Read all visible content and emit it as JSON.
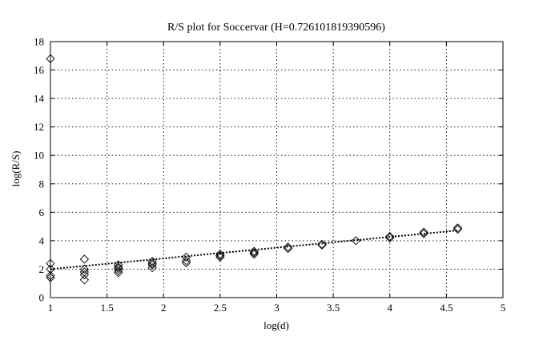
{
  "chart_data": {
    "type": "scatter",
    "title": "R/S plot for Soccervar (H=0.726101819390596)",
    "xlabel": "log(d)",
    "ylabel": "log(R/S)",
    "xlim": [
      1,
      5
    ],
    "ylim": [
      0,
      18
    ],
    "xticks": [
      "1",
      "1.5",
      "2",
      "2.5",
      "3",
      "3.5",
      "4",
      "4.5",
      "5"
    ],
    "yticks": [
      "0",
      "2",
      "4",
      "6",
      "8",
      "10",
      "12",
      "14",
      "16",
      "18"
    ],
    "grid": true,
    "marker": "diamond",
    "points": [
      [
        1.0,
        16.8
      ],
      [
        1.0,
        2.4
      ],
      [
        1.0,
        2.0
      ],
      [
        1.0,
        1.55
      ],
      [
        1.0,
        1.4
      ],
      [
        1.3,
        2.7
      ],
      [
        1.3,
        2.0
      ],
      [
        1.3,
        1.8
      ],
      [
        1.3,
        1.6
      ],
      [
        1.3,
        1.25
      ],
      [
        1.6,
        2.3
      ],
      [
        1.6,
        2.15
      ],
      [
        1.6,
        2.05
      ],
      [
        1.6,
        1.9
      ],
      [
        1.6,
        1.75
      ],
      [
        1.9,
        2.55
      ],
      [
        1.9,
        2.4
      ],
      [
        1.9,
        2.3
      ],
      [
        1.9,
        2.1
      ],
      [
        2.2,
        2.85
      ],
      [
        2.2,
        2.6
      ],
      [
        2.2,
        2.45
      ],
      [
        2.5,
        3.05
      ],
      [
        2.5,
        2.95
      ],
      [
        2.5,
        2.85
      ],
      [
        2.8,
        3.25
      ],
      [
        2.8,
        3.15
      ],
      [
        2.8,
        3.05
      ],
      [
        3.1,
        3.55
      ],
      [
        3.1,
        3.45
      ],
      [
        3.4,
        3.75
      ],
      [
        3.4,
        3.7
      ],
      [
        3.7,
        4.0
      ],
      [
        4.0,
        4.3
      ],
      [
        4.0,
        4.2
      ],
      [
        4.3,
        4.6
      ],
      [
        4.3,
        4.5
      ],
      [
        4.6,
        4.9
      ],
      [
        4.6,
        4.8
      ]
    ],
    "fit_line": {
      "x": [
        1.0,
        4.6
      ],
      "y": [
        2.0,
        4.72
      ]
    }
  }
}
